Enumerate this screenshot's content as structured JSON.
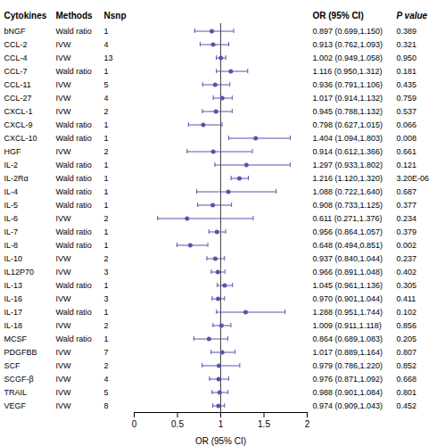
{
  "chart_data": {
    "type": "forest",
    "categories": [
      "bNGF",
      "CCL-2",
      "CCL-4",
      "CCL-7",
      "CCL-11",
      "CCL-27",
      "CXCL-1",
      "CXCL-9",
      "CXCL-10",
      "HGF",
      "IL-2",
      "IL-2Rα",
      "IL-4",
      "IL-5",
      "IL-6",
      "IL-7",
      "IL-8",
      "IL-10",
      "IL12P70",
      "IL-13",
      "IL-16",
      "IL-17",
      "IL-18",
      "MCSF",
      "PDGFBB",
      "SCF",
      "SCGF-β",
      "TRAIL",
      "VEGF"
    ],
    "methods": [
      "Wald ratio",
      "IVW",
      "IVW",
      "Wald ratio",
      "IVW",
      "IVW",
      "IVW",
      "Wald ratio",
      "Wald ratio",
      "IVW",
      "Wald ratio",
      "Wald ratio",
      "Wald ratio",
      "Wald ratio",
      "IVW",
      "Wald ratio",
      "Wald ratio",
      "IVW",
      "IVW",
      "Wald ratio",
      "IVW",
      "Wald ratio",
      "IVW",
      "Wald ratio",
      "IVW",
      "IVW",
      "IVW",
      "IVW",
      "IVW"
    ],
    "nsnp": [
      "1",
      "4",
      "13",
      "1",
      "5",
      "4",
      "2",
      "1",
      "1",
      "2",
      "1",
      "1",
      "1",
      "1",
      "2",
      "1",
      "1",
      "2",
      "3",
      "1",
      "3",
      "1",
      "2",
      "1",
      "7",
      "2",
      "4",
      "5",
      "8"
    ],
    "values": [
      0.897,
      0.913,
      1.002,
      1.116,
      0.936,
      1.017,
      0.945,
      0.798,
      1.404,
      0.914,
      1.297,
      1.216,
      1.088,
      0.908,
      0.611,
      0.956,
      0.648,
      0.937,
      0.966,
      1.045,
      0.97,
      1.288,
      1.009,
      0.864,
      1.017,
      0.979,
      0.976,
      0.988,
      0.974
    ],
    "ci_low": [
      0.699,
      0.762,
      0.949,
      0.95,
      0.791,
      0.914,
      0.788,
      0.627,
      1.094,
      0.612,
      0.933,
      1.12,
      0.722,
      0.733,
      0.271,
      0.864,
      0.494,
      0.84,
      0.891,
      0.961,
      0.901,
      0.951,
      0.911,
      0.689,
      0.889,
      0.786,
      0.871,
      0.901,
      0.909
    ],
    "ci_high": [
      1.15,
      1.093,
      1.058,
      1.312,
      1.106,
      1.132,
      1.132,
      1.015,
      1.803,
      1.366,
      1.802,
      1.32,
      1.64,
      1.125,
      1.376,
      1.057,
      0.851,
      1.044,
      1.048,
      1.136,
      1.044,
      1.744,
      1.118,
      1.083,
      1.164,
      1.22,
      1.092,
      1.084,
      1.043
    ],
    "value_labels": [
      "0.897 (0.699,1.150)",
      "0.913 (0.762,1.093)",
      "1.002 (0.949,1.058)",
      "1.116 (0.950,1.312)",
      "0.936 (0.791,1.106)",
      "1.017 (0.914,1.132)",
      "0.945 (0.788,1.132)",
      "0.798 (0.627,1.015)",
      "1.404 (1.094,1.803)",
      "0.914 (0.612,1.366)",
      "1.297 (0.933,1.802)",
      "1.216 (1.120,1.320)",
      "1.088 (0.722,1.640)",
      "0.908 (0.733,1.125)",
      "0.611 (0.271,1.376)",
      "0.956 (0.864,1.057)",
      "0.648 (0.494,0.851)",
      "0.937 (0.840,1.044)",
      "0.966 (0.891,1.048)",
      "1.045 (0.961,1.136)",
      "0.970 (0.901,1.044)",
      "1.288 (0.951,1.744)",
      "1.009 (0.911,1.118)",
      "0.864 (0.689,1.083)",
      "1.017 (0.889,1.164)",
      "0.979 (0.786,1.220)",
      "0.976 (0.871,1.092)",
      "0.988 (0.901,1.084)",
      "0.974 (0.909,1.043)"
    ],
    "pvalue_labels": [
      "0.389",
      "0.321",
      "0.950",
      "0.181",
      "0.435",
      "0.759",
      "0.537",
      "0.066",
      "0.008",
      "0.661",
      "0.121",
      "3.20E-06",
      "0.687",
      "0.377",
      "0.234",
      "0.379",
      "0.002",
      "0.237",
      "0.402",
      "0.305",
      "0.411",
      "0.102",
      "0.856",
      "0.205",
      "0.807",
      "0.852",
      "0.668",
      "0.801",
      "0.452"
    ],
    "headers": [
      "Cytokines",
      "Methods",
      "Nsnp",
      "OR (95% CI)",
      "P value"
    ],
    "color": "#5555aa",
    "reference_line": 1,
    "reference_line_color": "#444444",
    "xlabel": "OR (95% CI)",
    "xlim": [
      0,
      2.0
    ],
    "xticks": [
      0,
      0.5,
      1,
      1.5,
      2
    ],
    "tick_labels": "x"
  }
}
